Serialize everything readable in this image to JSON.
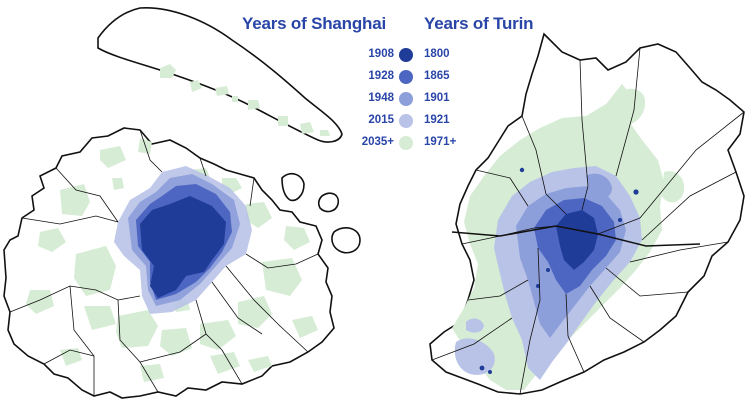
{
  "titles": {
    "shanghai": "Years of Shanghai",
    "turin": "Years of Turin"
  },
  "legend": [
    {
      "shanghai": "1908",
      "turin": "1800",
      "color": "#1f3c99"
    },
    {
      "shanghai": "1928",
      "turin": "1865",
      "color": "#4d66c2"
    },
    {
      "shanghai": "1948",
      "turin": "1901",
      "color": "#8d9fda"
    },
    {
      "shanghai": "2015",
      "turin": "1921",
      "color": "#b9c3e7"
    },
    {
      "shanghai": "2035+",
      "turin": "1971+",
      "color": "#d6ecd4"
    }
  ],
  "colors": {
    "title": "#2a45a8",
    "outline": "#111111",
    "land": "#ffffff"
  }
}
